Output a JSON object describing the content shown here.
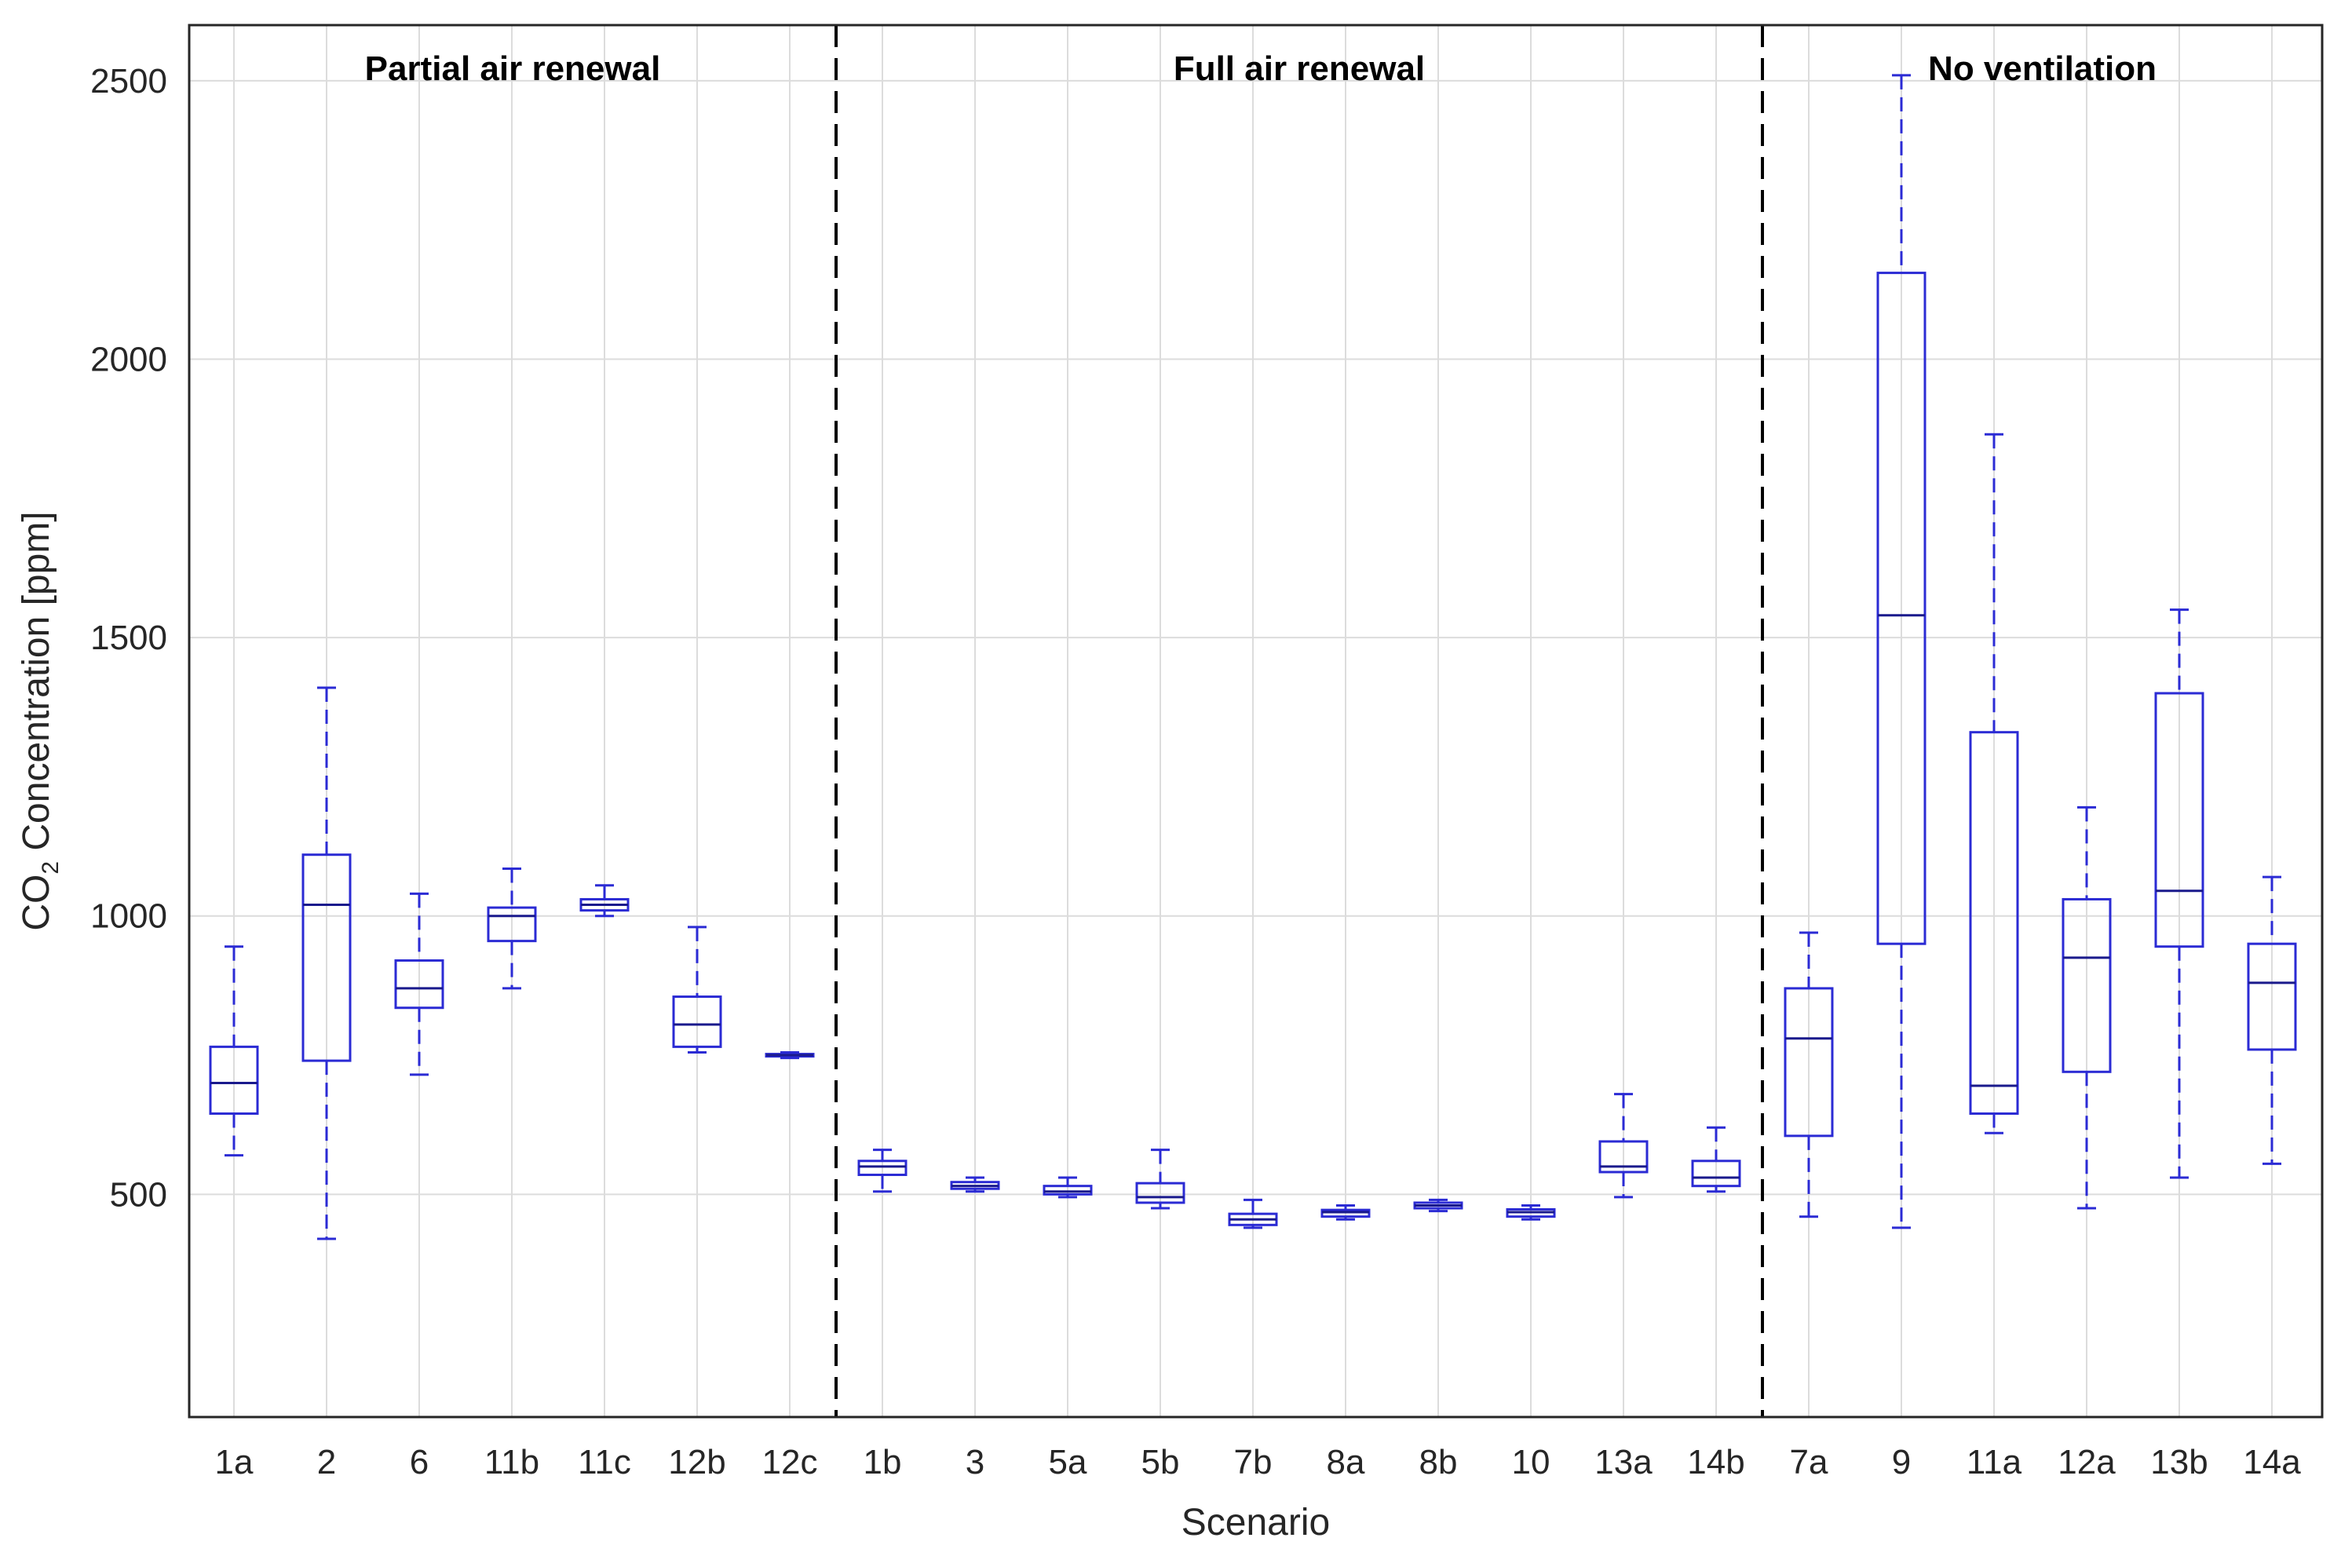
{
  "chart_data": {
    "type": "box",
    "xlabel": "Scenario",
    "ylabel": "CO",
    "ylabel_subscript": "2",
    "ylabel_suffix": " Concentration [ppm]",
    "ylim": [
      100,
      2600
    ],
    "yticks": [
      500,
      1000,
      1500,
      2000,
      2500
    ],
    "grid": true,
    "colors": {
      "box": "#2b2bd4",
      "median": "#1a1a8c",
      "grid": "#dcdcdc",
      "axis": "#262626",
      "separator": "#000000"
    },
    "categories": [
      "1a",
      "2",
      "6",
      "11b",
      "11c",
      "12b",
      "12c",
      "1b",
      "3",
      "5a",
      "5b",
      "7b",
      "8a",
      "8b",
      "10",
      "13a",
      "14b",
      "7a",
      "9",
      "11a",
      "12a",
      "13b",
      "14a"
    ],
    "boxes": [
      {
        "label": "1a",
        "min": 570,
        "q1": 645,
        "median": 700,
        "q3": 765,
        "max": 945
      },
      {
        "label": "2",
        "min": 420,
        "q1": 740,
        "median": 1020,
        "q3": 1110,
        "max": 1410
      },
      {
        "label": "6",
        "min": 715,
        "q1": 835,
        "median": 870,
        "q3": 920,
        "max": 1040
      },
      {
        "label": "11b",
        "min": 870,
        "q1": 955,
        "median": 1000,
        "q3": 1015,
        "max": 1085
      },
      {
        "label": "11c",
        "min": 1000,
        "q1": 1010,
        "median": 1020,
        "q3": 1030,
        "max": 1055
      },
      {
        "label": "12b",
        "min": 755,
        "q1": 765,
        "median": 805,
        "q3": 855,
        "max": 980
      },
      {
        "label": "12c",
        "min": 745,
        "q1": 748,
        "median": 750,
        "q3": 752,
        "max": 755
      },
      {
        "label": "1b",
        "min": 505,
        "q1": 535,
        "median": 550,
        "q3": 560,
        "max": 580
      },
      {
        "label": "3",
        "min": 505,
        "q1": 510,
        "median": 515,
        "q3": 522,
        "max": 530
      },
      {
        "label": "5a",
        "min": 495,
        "q1": 500,
        "median": 505,
        "q3": 515,
        "max": 530
      },
      {
        "label": "5b",
        "min": 475,
        "q1": 485,
        "median": 495,
        "q3": 520,
        "max": 580
      },
      {
        "label": "7b",
        "min": 440,
        "q1": 445,
        "median": 455,
        "q3": 465,
        "max": 490
      },
      {
        "label": "8a",
        "min": 455,
        "q1": 460,
        "median": 468,
        "q3": 472,
        "max": 480
      },
      {
        "label": "8b",
        "min": 470,
        "q1": 475,
        "median": 480,
        "q3": 485,
        "max": 490
      },
      {
        "label": "10",
        "min": 455,
        "q1": 460,
        "median": 468,
        "q3": 473,
        "max": 480
      },
      {
        "label": "13a",
        "min": 495,
        "q1": 540,
        "median": 550,
        "q3": 595,
        "max": 680
      },
      {
        "label": "14b",
        "min": 505,
        "q1": 515,
        "median": 530,
        "q3": 560,
        "max": 620
      },
      {
        "label": "7a",
        "min": 460,
        "q1": 605,
        "median": 780,
        "q3": 870,
        "max": 970
      },
      {
        "label": "9",
        "min": 440,
        "q1": 950,
        "median": 1540,
        "q3": 2155,
        "max": 2510
      },
      {
        "label": "11a",
        "min": 610,
        "q1": 645,
        "median": 695,
        "q3": 1330,
        "max": 1865
      },
      {
        "label": "12a",
        "min": 475,
        "q1": 720,
        "median": 925,
        "q3": 1030,
        "max": 1195
      },
      {
        "label": "13b",
        "min": 530,
        "q1": 945,
        "median": 1045,
        "q3": 1400,
        "max": 1550
      },
      {
        "label": "14a",
        "min": 555,
        "q1": 760,
        "median": 880,
        "q3": 950,
        "max": 1070
      }
    ],
    "groups": [
      {
        "label": "Partial air renewal",
        "start": 0,
        "end": 6
      },
      {
        "label": "Full air renewal",
        "start": 7,
        "end": 16
      },
      {
        "label": "No ventilation",
        "start": 17,
        "end": 22
      }
    ]
  }
}
